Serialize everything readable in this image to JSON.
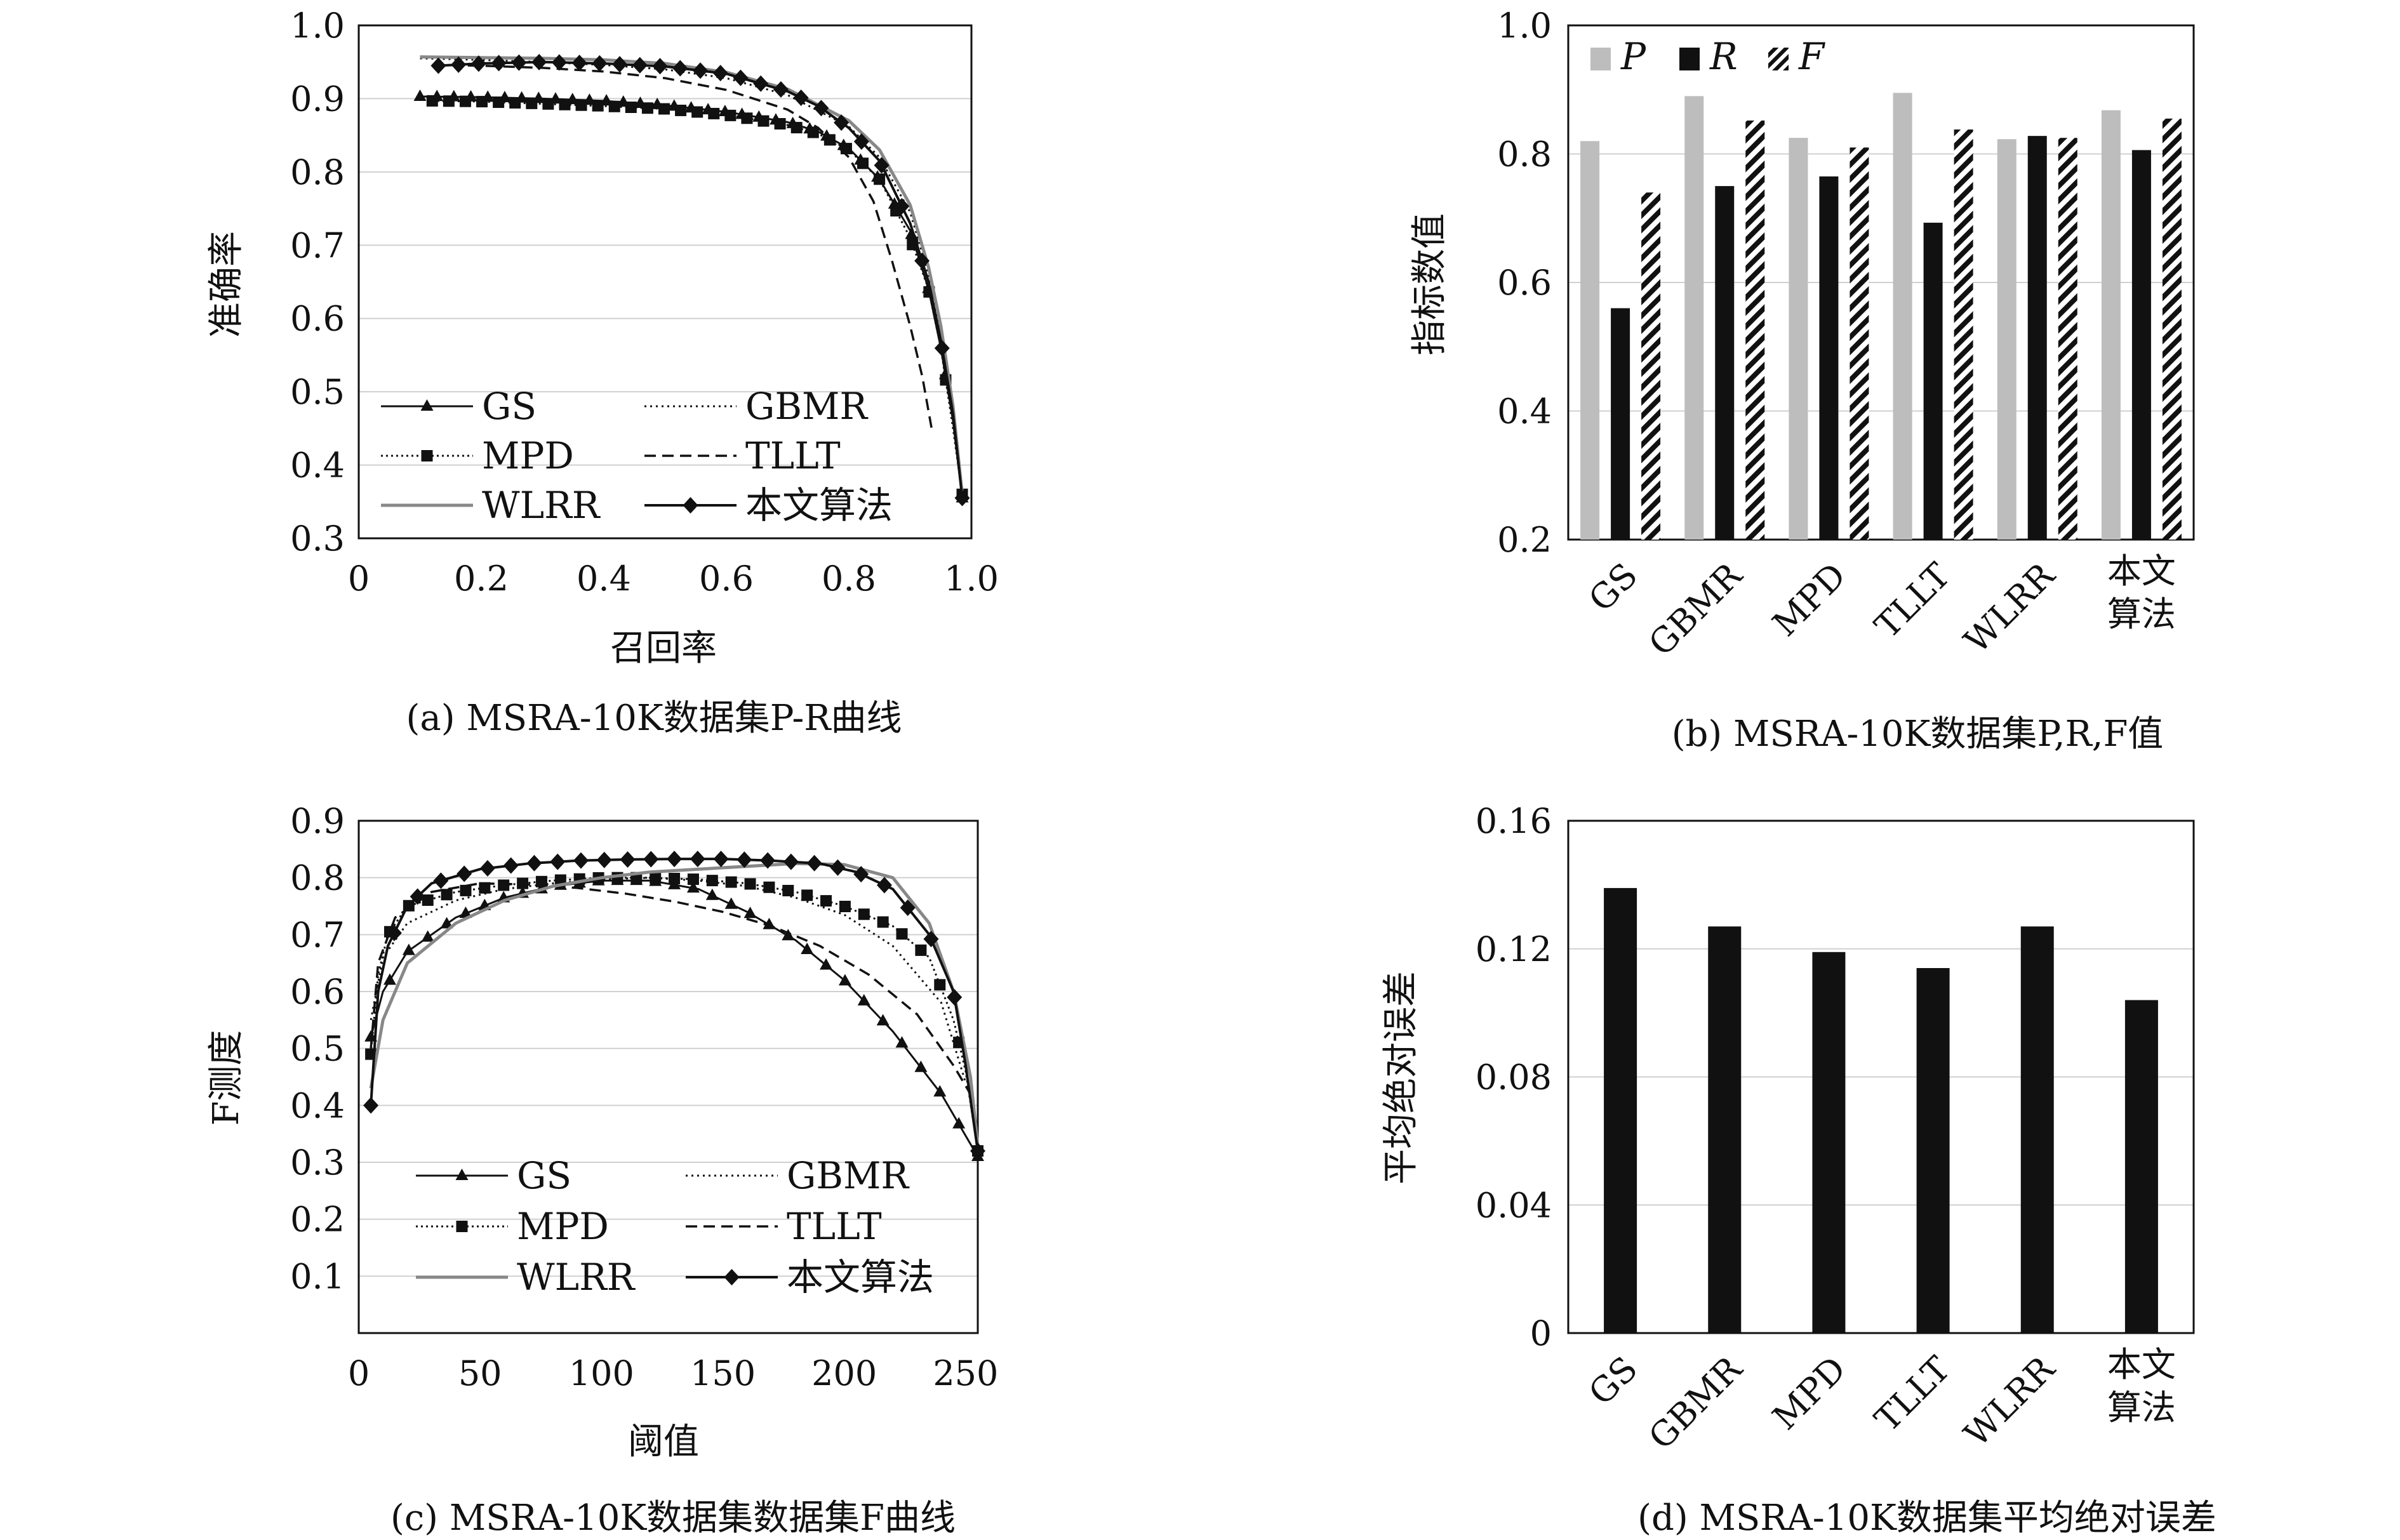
{
  "chart_data": [
    {
      "id": "a",
      "type": "line",
      "caption": "(a) MSRA-10K数据集P-R曲线",
      "xlabel": "召回率",
      "ylabel": "准确率",
      "xlim": [
        0,
        1.0
      ],
      "ylim": [
        0.3,
        1.0
      ],
      "xticks": [
        "0",
        "0.2",
        "0.4",
        "0.6",
        "0.8",
        "1.0"
      ],
      "yticks": [
        "0.3",
        "0.4",
        "0.5",
        "0.6",
        "0.7",
        "0.8",
        "0.9",
        "1.0"
      ],
      "grid": "horizontal",
      "legend": "bottom-left",
      "series": [
        {
          "name": "GS",
          "style": "triangle",
          "points": [
            [
              0.1,
              0.903
            ],
            [
              0.2,
              0.902
            ],
            [
              0.3,
              0.9
            ],
            [
              0.4,
              0.897
            ],
            [
              0.5,
              0.891
            ],
            [
              0.6,
              0.882
            ],
            [
              0.7,
              0.868
            ],
            [
              0.75,
              0.855
            ],
            [
              0.8,
              0.832
            ],
            [
              0.85,
              0.79
            ],
            [
              0.9,
              0.72
            ],
            [
              0.93,
              0.64
            ],
            [
              0.95,
              0.56
            ],
            [
              0.97,
              0.46
            ],
            [
              0.985,
              0.355
            ]
          ]
        },
        {
          "name": "GBMR",
          "style": "dotted",
          "points": [
            [
              0.1,
              0.955
            ],
            [
              0.2,
              0.953
            ],
            [
              0.3,
              0.95
            ],
            [
              0.4,
              0.946
            ],
            [
              0.5,
              0.94
            ],
            [
              0.6,
              0.928
            ],
            [
              0.7,
              0.905
            ],
            [
              0.8,
              0.862
            ],
            [
              0.85,
              0.82
            ],
            [
              0.9,
              0.745
            ],
            [
              0.93,
              0.66
            ],
            [
              0.95,
              0.58
            ],
            [
              0.97,
              0.47
            ],
            [
              0.985,
              0.36
            ]
          ]
        },
        {
          "name": "MPD",
          "style": "square-dotted",
          "points": [
            [
              0.12,
              0.897
            ],
            [
              0.2,
              0.896
            ],
            [
              0.3,
              0.893
            ],
            [
              0.4,
              0.89
            ],
            [
              0.5,
              0.886
            ],
            [
              0.6,
              0.878
            ],
            [
              0.7,
              0.864
            ],
            [
              0.75,
              0.852
            ],
            [
              0.8,
              0.83
            ],
            [
              0.85,
              0.79
            ],
            [
              0.9,
              0.71
            ],
            [
              0.93,
              0.64
            ],
            [
              0.95,
              0.56
            ],
            [
              0.97,
              0.45
            ],
            [
              0.985,
              0.36
            ]
          ]
        },
        {
          "name": "TLLT",
          "style": "dashed",
          "points": [
            [
              0.12,
              0.946
            ],
            [
              0.2,
              0.945
            ],
            [
              0.3,
              0.942
            ],
            [
              0.4,
              0.937
            ],
            [
              0.5,
              0.928
            ],
            [
              0.6,
              0.912
            ],
            [
              0.7,
              0.885
            ],
            [
              0.75,
              0.86
            ],
            [
              0.8,
              0.82
            ],
            [
              0.84,
              0.76
            ],
            [
              0.87,
              0.68
            ],
            [
              0.9,
              0.59
            ],
            [
              0.92,
              0.52
            ],
            [
              0.935,
              0.45
            ]
          ]
        },
        {
          "name": "WLRR",
          "style": "gray",
          "points": [
            [
              0.1,
              0.957
            ],
            [
              0.2,
              0.956
            ],
            [
              0.3,
              0.955
            ],
            [
              0.4,
              0.953
            ],
            [
              0.5,
              0.948
            ],
            [
              0.6,
              0.936
            ],
            [
              0.7,
              0.913
            ],
            [
              0.8,
              0.87
            ],
            [
              0.85,
              0.83
            ],
            [
              0.9,
              0.755
            ],
            [
              0.93,
              0.67
            ],
            [
              0.95,
              0.59
            ],
            [
              0.97,
              0.48
            ],
            [
              0.985,
              0.36
            ]
          ]
        },
        {
          "name": "本文算法",
          "style": "diamond",
          "points": [
            [
              0.13,
              0.945
            ],
            [
              0.2,
              0.948
            ],
            [
              0.3,
              0.95
            ],
            [
              0.4,
              0.948
            ],
            [
              0.5,
              0.944
            ],
            [
              0.6,
              0.934
            ],
            [
              0.7,
              0.91
            ],
            [
              0.75,
              0.89
            ],
            [
              0.8,
              0.86
            ],
            [
              0.85,
              0.815
            ],
            [
              0.9,
              0.73
            ],
            [
              0.93,
              0.65
            ],
            [
              0.95,
              0.57
            ],
            [
              0.97,
              0.47
            ],
            [
              0.985,
              0.355
            ]
          ]
        }
      ]
    },
    {
      "id": "b",
      "type": "bar",
      "caption": "(b) MSRA-10K数据集P,R,F值",
      "xlabel": "",
      "ylabel": "指标数值",
      "ylim": [
        0.2,
        1.0
      ],
      "yticks": [
        "0.2",
        "0.4",
        "0.6",
        "0.8",
        "1.0"
      ],
      "grid": "horizontal",
      "legend": "top-left",
      "categories": [
        "GS",
        "GBMR",
        "MPD",
        "TLLT",
        "WLRR",
        "本文\n算法"
      ],
      "series": [
        {
          "name": "P",
          "fill": "lightgray",
          "values": [
            0.82,
            0.89,
            0.825,
            0.895,
            0.823,
            0.868
          ]
        },
        {
          "name": "R",
          "fill": "black",
          "values": [
            0.56,
            0.75,
            0.765,
            0.693,
            0.828,
            0.806
          ]
        },
        {
          "name": "F",
          "fill": "hatch",
          "values": [
            0.74,
            0.852,
            0.81,
            0.838,
            0.825,
            0.855
          ]
        }
      ]
    },
    {
      "id": "c",
      "type": "line",
      "caption": "(c) MSRA-10K数据集数据集F曲线",
      "xlabel": "阈值",
      "ylabel": "F测度",
      "xlim": [
        0,
        255
      ],
      "ylim": [
        0,
        0.9
      ],
      "xticks": [
        "0",
        "50",
        "100",
        "150",
        "200",
        "250"
      ],
      "yticks": [
        "0.1",
        "0.2",
        "0.3",
        "0.4",
        "0.5",
        "0.6",
        "0.7",
        "0.8",
        "0.9"
      ],
      "grid": "horizontal",
      "legend": "bottom-left",
      "series": [
        {
          "name": "GS",
          "style": "triangle",
          "points": [
            [
              5,
              0.52
            ],
            [
              10,
              0.6
            ],
            [
              20,
              0.67
            ],
            [
              40,
              0.73
            ],
            [
              60,
              0.765
            ],
            [
              80,
              0.785
            ],
            [
              100,
              0.795
            ],
            [
              120,
              0.795
            ],
            [
              140,
              0.78
            ],
            [
              160,
              0.74
            ],
            [
              180,
              0.69
            ],
            [
              200,
              0.62
            ],
            [
              220,
              0.53
            ],
            [
              240,
              0.42
            ],
            [
              255,
              0.31
            ]
          ]
        },
        {
          "name": "GBMR",
          "style": "dotted",
          "points": [
            [
              5,
              0.55
            ],
            [
              10,
              0.66
            ],
            [
              20,
              0.72
            ],
            [
              40,
              0.76
            ],
            [
              60,
              0.78
            ],
            [
              80,
              0.79
            ],
            [
              100,
              0.797
            ],
            [
              120,
              0.8
            ],
            [
              140,
              0.795
            ],
            [
              160,
              0.785
            ],
            [
              180,
              0.765
            ],
            [
              200,
              0.735
            ],
            [
              220,
              0.68
            ],
            [
              240,
              0.58
            ],
            [
              250,
              0.44
            ]
          ]
        },
        {
          "name": "MPD",
          "style": "square-dotted",
          "points": [
            [
              5,
              0.49
            ],
            [
              8,
              0.63
            ],
            [
              12,
              0.7
            ],
            [
              20,
              0.75
            ],
            [
              40,
              0.775
            ],
            [
              60,
              0.787
            ],
            [
              80,
              0.795
            ],
            [
              100,
              0.8
            ],
            [
              120,
              0.8
            ],
            [
              140,
              0.797
            ],
            [
              160,
              0.79
            ],
            [
              180,
              0.775
            ],
            [
              200,
              0.75
            ],
            [
              220,
              0.715
            ],
            [
              235,
              0.66
            ],
            [
              245,
              0.55
            ],
            [
              250,
              0.46
            ],
            [
              255,
              0.32
            ]
          ]
        },
        {
          "name": "TLLT",
          "style": "dashed",
          "points": [
            [
              5,
              0.5
            ],
            [
              8,
              0.65
            ],
            [
              15,
              0.73
            ],
            [
              30,
              0.775
            ],
            [
              50,
              0.79
            ],
            [
              70,
              0.788
            ],
            [
              90,
              0.782
            ],
            [
              110,
              0.772
            ],
            [
              130,
              0.758
            ],
            [
              150,
              0.74
            ],
            [
              170,
              0.715
            ],
            [
              190,
              0.68
            ],
            [
              210,
              0.63
            ],
            [
              230,
              0.56
            ],
            [
              245,
              0.47
            ],
            [
              252,
              0.42
            ]
          ]
        },
        {
          "name": "WLRR",
          "style": "gray",
          "points": [
            [
              5,
              0.43
            ],
            [
              10,
              0.55
            ],
            [
              20,
              0.65
            ],
            [
              40,
              0.72
            ],
            [
              60,
              0.76
            ],
            [
              80,
              0.785
            ],
            [
              100,
              0.8
            ],
            [
              120,
              0.81
            ],
            [
              140,
              0.815
            ],
            [
              160,
              0.82
            ],
            [
              180,
              0.825
            ],
            [
              200,
              0.823
            ],
            [
              220,
              0.8
            ],
            [
              235,
              0.72
            ],
            [
              245,
              0.6
            ],
            [
              252,
              0.45
            ],
            [
              255,
              0.33
            ]
          ]
        },
        {
          "name": "本文算法",
          "style": "diamond",
          "points": [
            [
              5,
              0.4
            ],
            [
              8,
              0.6
            ],
            [
              12,
              0.68
            ],
            [
              20,
              0.75
            ],
            [
              30,
              0.79
            ],
            [
              50,
              0.815
            ],
            [
              70,
              0.825
            ],
            [
              90,
              0.83
            ],
            [
              110,
              0.832
            ],
            [
              130,
              0.833
            ],
            [
              150,
              0.833
            ],
            [
              170,
              0.83
            ],
            [
              190,
              0.825
            ],
            [
              205,
              0.81
            ],
            [
              220,
              0.78
            ],
            [
              235,
              0.7
            ],
            [
              245,
              0.6
            ],
            [
              250,
              0.47
            ],
            [
              255,
              0.32
            ]
          ]
        }
      ]
    },
    {
      "id": "d",
      "type": "bar",
      "caption": "(d) MSRA-10K数据集平均绝对误差",
      "xlabel": "",
      "ylabel": "平均绝对误差",
      "ylim": [
        0,
        0.16
      ],
      "yticks": [
        "0",
        "0.04",
        "0.08",
        "0.12",
        "0.16"
      ],
      "grid": "horizontal",
      "categories": [
        "GS",
        "GBMR",
        "MPD",
        "TLLT",
        "WLRR",
        "本文\n算法"
      ],
      "values": [
        0.139,
        0.127,
        0.119,
        0.114,
        0.127,
        0.104
      ]
    }
  ]
}
